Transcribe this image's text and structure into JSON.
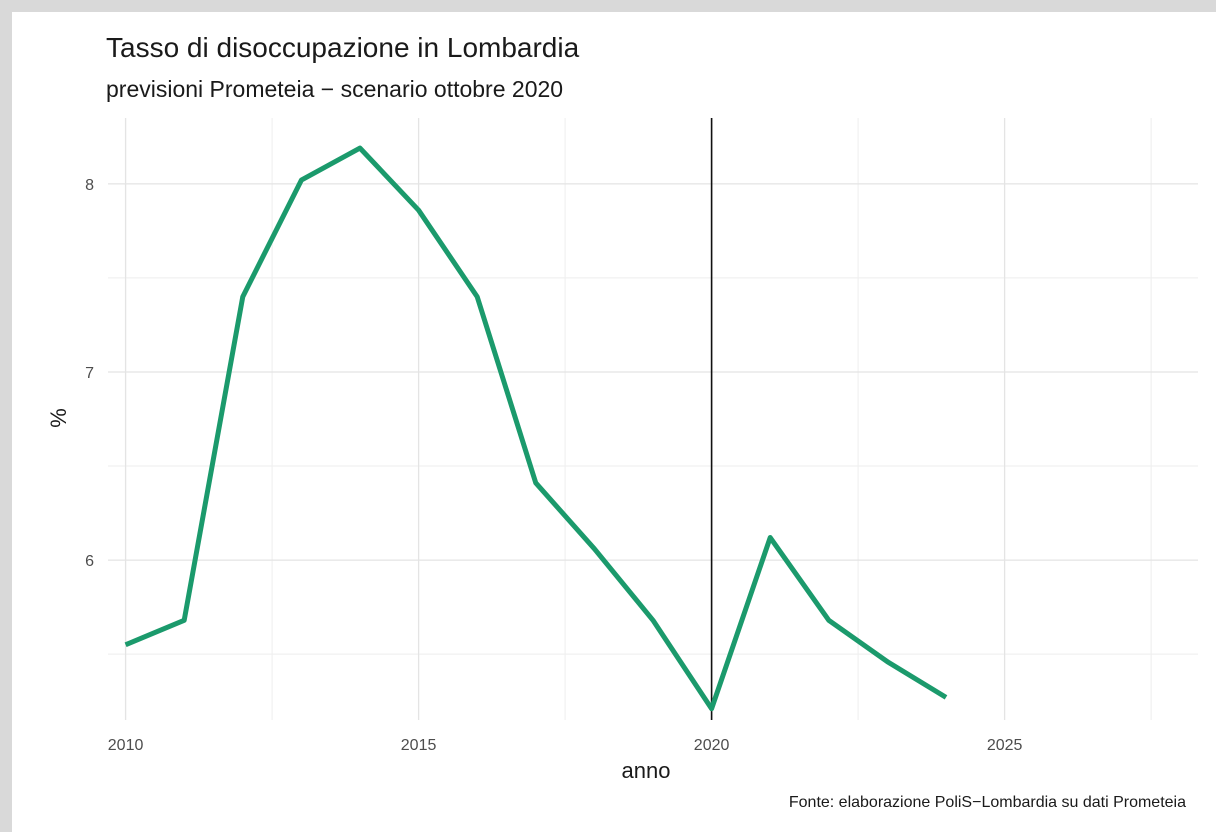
{
  "chart_data": {
    "type": "line",
    "title": "Tasso di disoccupazione in Lombardia",
    "subtitle": "previsioni Prometeia − scenario ottobre 2020",
    "caption": "Fonte: elaborazione PoliS−Lombardia su dati Prometeia",
    "xlabel": "anno",
    "ylabel": "%",
    "x": [
      2010,
      2011,
      2012,
      2013,
      2014,
      2015,
      2016,
      2017,
      2018,
      2019,
      2020,
      2021,
      2022,
      2023,
      2024
    ],
    "series": [
      {
        "values": [
          5.55,
          5.68,
          7.4,
          8.02,
          8.19,
          7.86,
          7.4,
          6.41,
          6.06,
          5.68,
          5.21,
          6.12,
          5.68,
          5.46,
          5.27
        ],
        "color": "#1b9a6c"
      }
    ],
    "xlim": [
      2009.7,
      2028.3
    ],
    "ylim": [
      5.15,
      8.35
    ],
    "x_ticks": [
      2010,
      2015,
      2020,
      2025
    ],
    "y_ticks": [
      6,
      7,
      8
    ],
    "vline": 2020,
    "grid": true,
    "legend": "none"
  }
}
